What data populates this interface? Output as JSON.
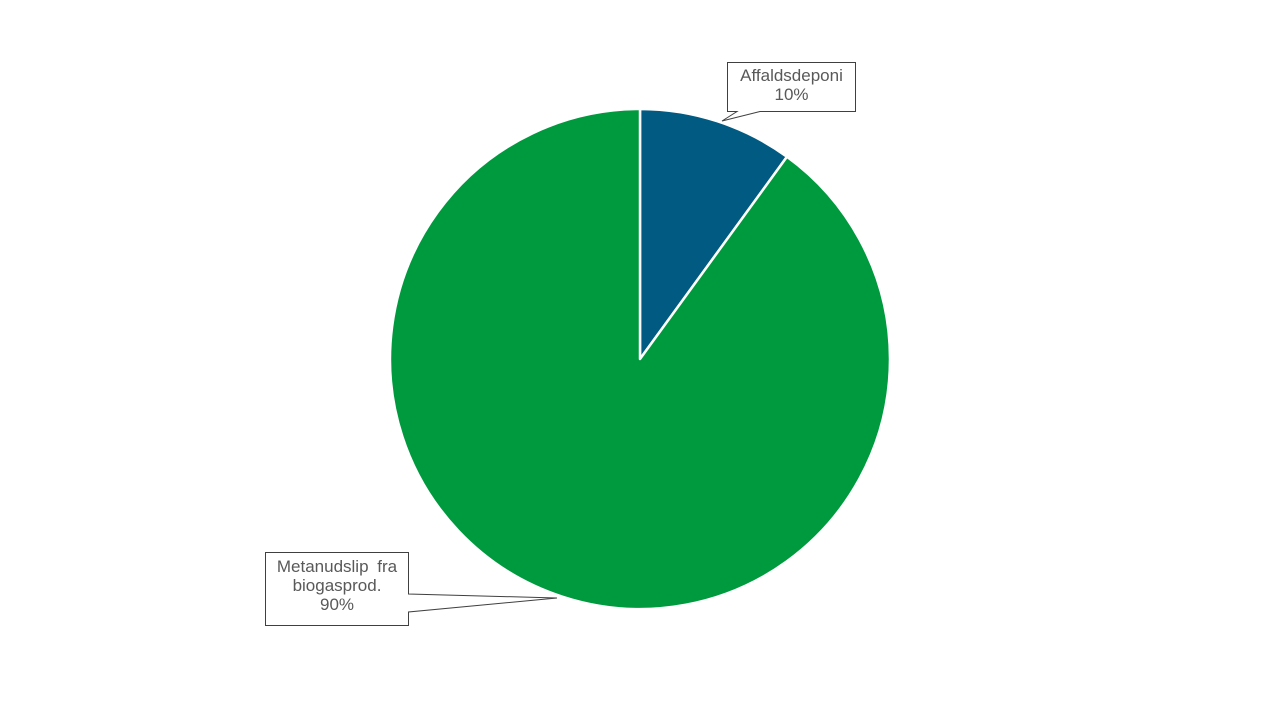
{
  "chart_data": {
    "type": "pie",
    "categories": [
      "Affaldsdeponi",
      "Metanudslip fra biogasprod."
    ],
    "values": [
      10,
      90
    ],
    "value_labels": [
      "10%",
      "90%"
    ],
    "colors": [
      "#005A82",
      "#009A3E"
    ],
    "start_angle": "12 o'clock, clockwise",
    "legend": "none"
  }
}
